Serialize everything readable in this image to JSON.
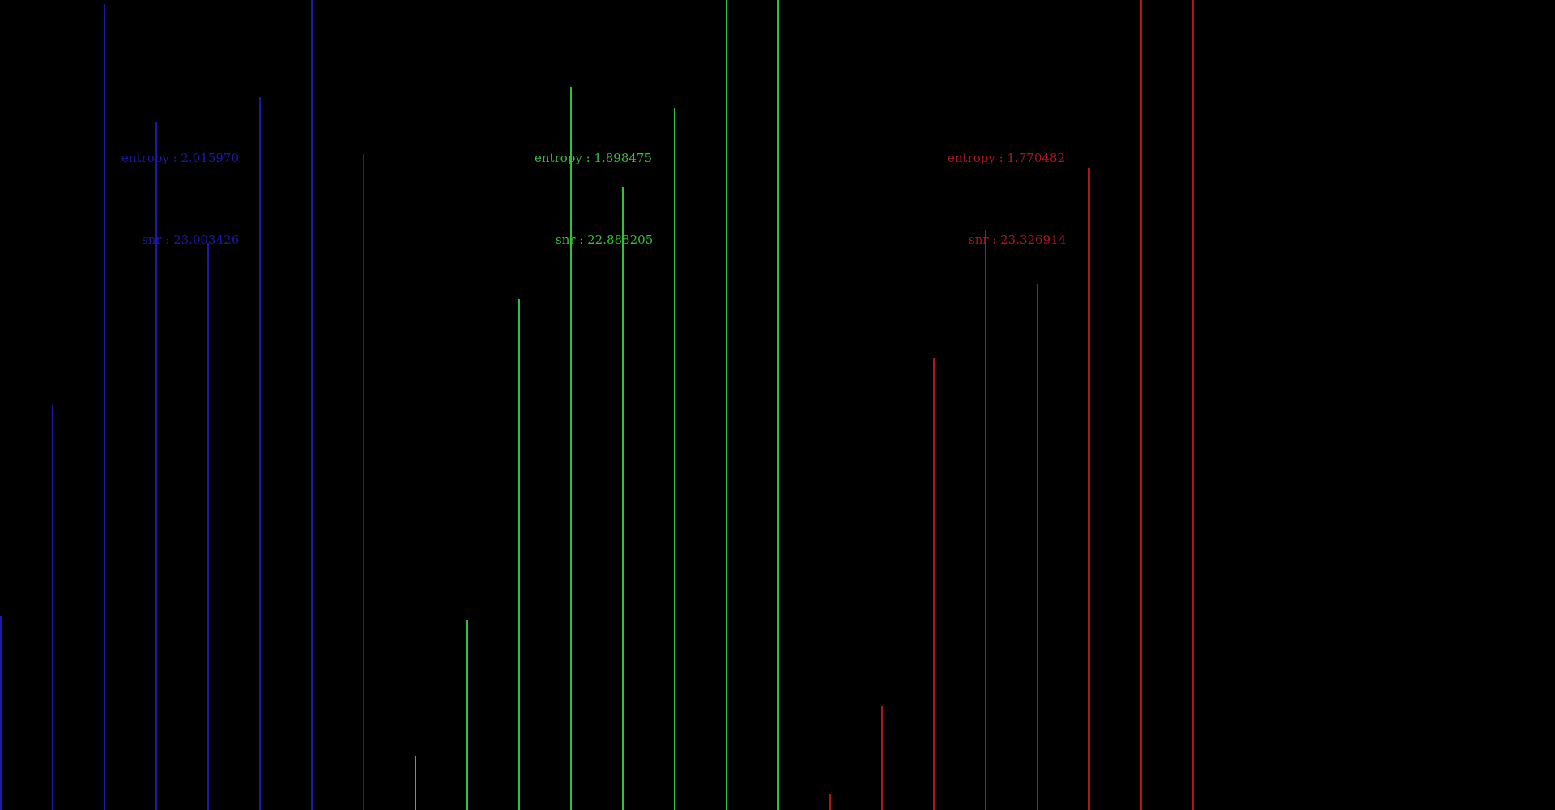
{
  "chart_data": {
    "type": "bar",
    "title": "",
    "xlabel": "",
    "ylabel": "",
    "ylim": [
      0,
      1000
    ],
    "grid": false,
    "legend": "none",
    "series": [
      {
        "color": "#1a1aa8",
        "entropy_label": "entropy : 2.015970",
        "snr_label": "snr :   23.003426",
        "values": [
          240,
          500,
          995,
          850,
          700,
          880,
          1000,
          810
        ]
      },
      {
        "color": "#33c233",
        "entropy_label": "entropy : 1.898475",
        "snr_label": "snr :   22.888205",
        "values": [
          67,
          234,
          631,
          893,
          769,
          867,
          1000,
          1000
        ]
      },
      {
        "color": "#b01818",
        "entropy_label": "entropy : 1.770482",
        "snr_label": "snr :   23.326914",
        "values": [
          20,
          129,
          558,
          716,
          649,
          793,
          1000,
          1000
        ]
      }
    ]
  }
}
